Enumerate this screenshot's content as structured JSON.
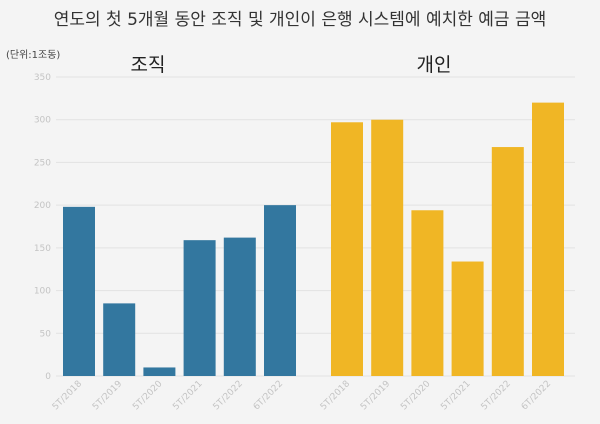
{
  "chart_data": {
    "type": "bar",
    "title": "연도의 첫 5개월 동안 조직 및 개인이 은행 시스템에 예치한 예금 금액",
    "unit_label": "(단위:1조동)",
    "ylim": [
      0,
      350
    ],
    "yticks": [
      0,
      50,
      100,
      150,
      200,
      250,
      300,
      350
    ],
    "grid": true,
    "colors": {
      "조직": "#33779f",
      "개인": "#f0b625"
    },
    "groups": [
      {
        "name": "조직",
        "categories": [
          "5T/2018",
          "5T/2019",
          "5T/2020",
          "5T/2021",
          "5T/2022",
          "6T/2022"
        ],
        "values": [
          198,
          85,
          10,
          159,
          162,
          200
        ]
      },
      {
        "name": "개인",
        "categories": [
          "5T/2018",
          "5T/2019",
          "5T/2020",
          "5T/2021",
          "5T/2022",
          "6T/2022"
        ],
        "values": [
          297,
          300,
          194,
          134,
          268,
          320
        ]
      }
    ]
  }
}
